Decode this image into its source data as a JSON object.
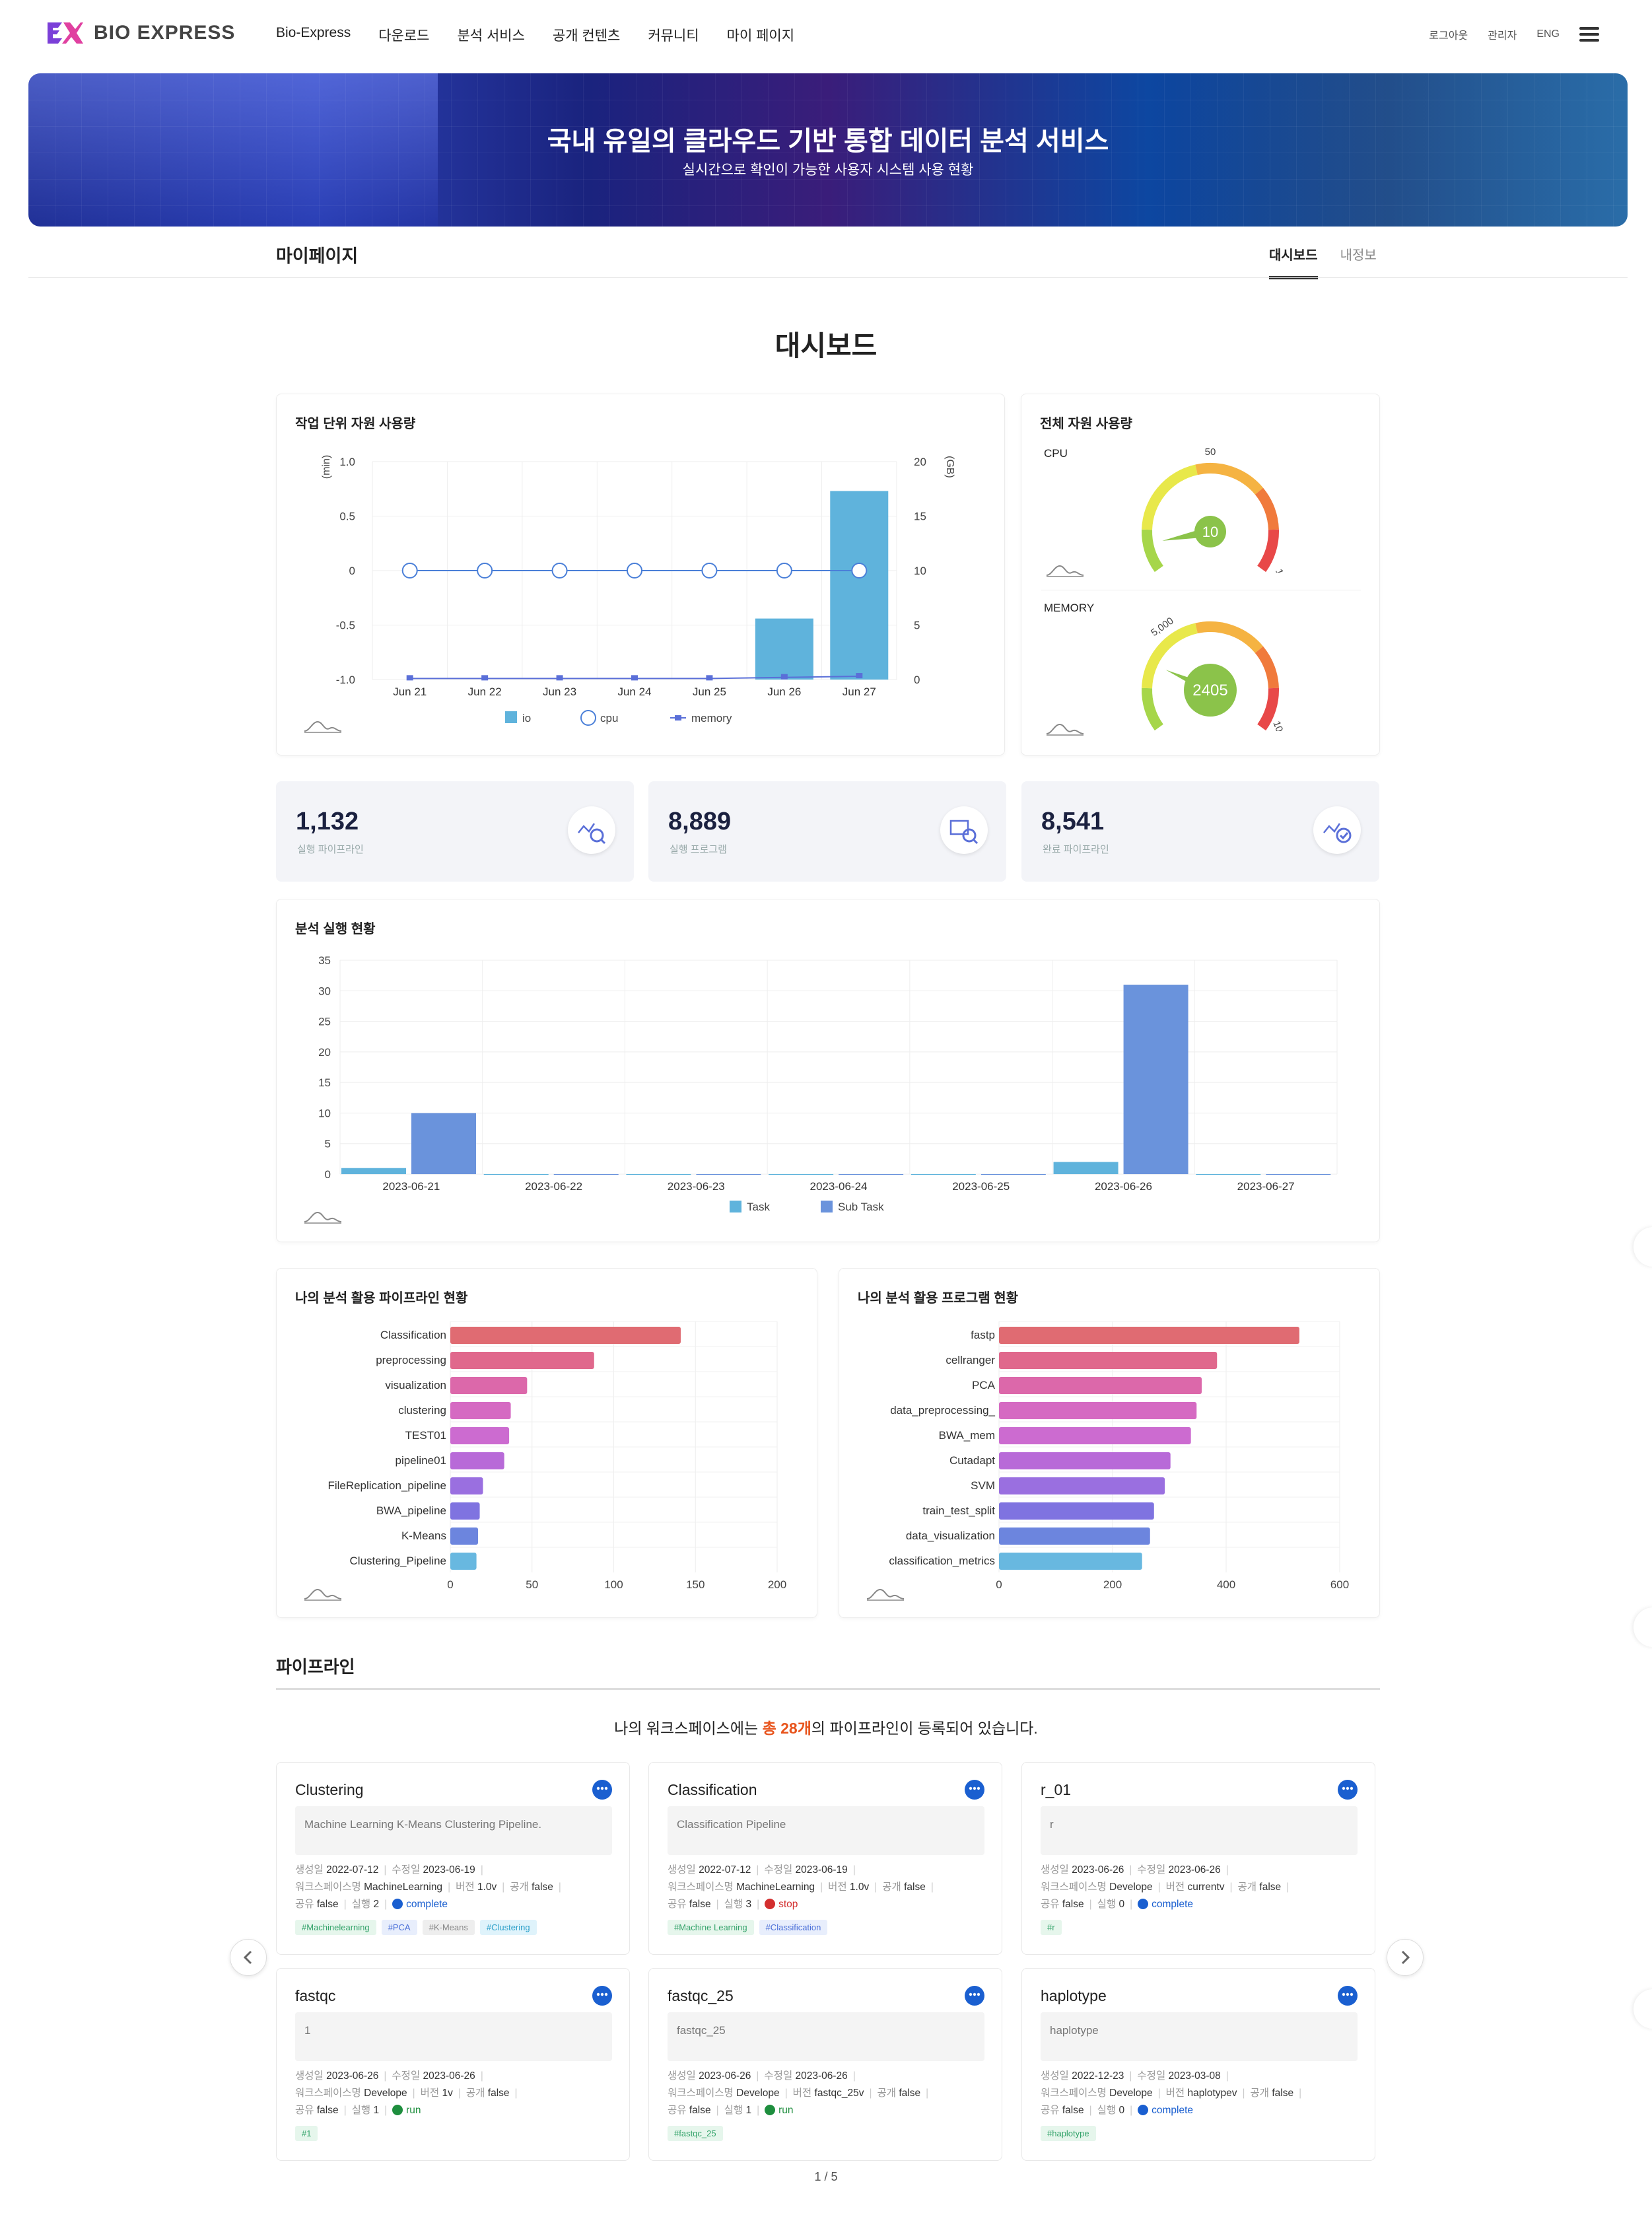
{
  "header": {
    "logo_text": "BIO EXPRESS",
    "nav": [
      "Bio-Express",
      "다운로드",
      "분석 서비스",
      "공개 컨텐츠",
      "커뮤니티",
      "마이 페이지"
    ],
    "util": [
      "로그아웃",
      "관리자",
      "ENG"
    ]
  },
  "banner": {
    "title": "국내 유일의 클라우드 기반 통합 데이터 분석 서비스",
    "subtitle": "실시간으로 확인이 가능한 사용자 시스템 사용 현황"
  },
  "subnav": {
    "title": "마이페이지",
    "tabs": [
      "대시보드",
      "내정보"
    ]
  },
  "dashboard_title": "대시보드",
  "job_usage": {
    "title": "작업 단위 자원 사용량",
    "left_unit": "(min)",
    "right_unit": "(GB)",
    "legend": [
      "io",
      "cpu",
      "memory"
    ],
    "colors": {
      "io": "#5fb3dc",
      "cpu": "#4a7fd8",
      "memory": "#5a6fd8"
    }
  },
  "total_usage": {
    "title": "전체 자원 사용량",
    "cpu": {
      "label": "CPU",
      "value": "10",
      "min": "0",
      "mid": "50",
      "max": "100"
    },
    "memory": {
      "label": "MEMORY",
      "value": "2405",
      "min": "0",
      "mid": "5,000",
      "max": "10,000"
    }
  },
  "stats": [
    {
      "value": "1,132",
      "label": "실행 파이프라인"
    },
    {
      "value": "8,889",
      "label": "실행 프로그램"
    },
    {
      "value": "8,541",
      "label": "완료 파이프라인"
    }
  ],
  "run_status": {
    "title": "분석 실행 현황",
    "legend": [
      "Task",
      "Sub Task"
    ]
  },
  "my_pipelines": {
    "title": "나의 분석 활용 파이프라인 현황"
  },
  "my_programs": {
    "title": "나의 분석 활용 프로그램 현황"
  },
  "chart_data": [
    {
      "type": "bar",
      "title": "작업 단위 자원 사용량",
      "categories": [
        "Jun 21",
        "Jun 22",
        "Jun 23",
        "Jun 24",
        "Jun 25",
        "Jun 26",
        "Jun 27"
      ],
      "yleft": {
        "label": "(min)",
        "ticks": [
          "1.0",
          "0.5",
          "0",
          "-0.5",
          "-1.0"
        ],
        "range": [
          -1,
          1
        ]
      },
      "yright": {
        "label": "(GB)",
        "ticks": [
          "20",
          "15",
          "10",
          "5",
          "0"
        ],
        "range": [
          0,
          20
        ]
      },
      "series": [
        {
          "name": "io",
          "values": [
            0,
            0,
            0,
            0,
            0,
            5.6,
            17.3
          ]
        },
        {
          "name": "cpu",
          "values": [
            0,
            0,
            0,
            0,
            0,
            0,
            0
          ]
        },
        {
          "name": "memory",
          "values": [
            0.1,
            0.1,
            0.1,
            0.1,
            0.1,
            0.2,
            0.3
          ]
        }
      ]
    },
    {
      "type": "bar",
      "title": "분석 실행 현황",
      "categories": [
        "2023-06-21",
        "2023-06-22",
        "2023-06-23",
        "2023-06-24",
        "2023-06-25",
        "2023-06-26",
        "2023-06-27"
      ],
      "ylim": [
        0,
        35
      ],
      "yticks": [
        "35",
        "30",
        "25",
        "20",
        "15",
        "10",
        "5",
        "0"
      ],
      "series": [
        {
          "name": "Task",
          "values": [
            1,
            0,
            0,
            0,
            0,
            2,
            0
          ]
        },
        {
          "name": "Sub Task",
          "values": [
            10,
            0,
            0,
            0,
            0,
            31,
            0
          ]
        }
      ]
    },
    {
      "type": "bar",
      "orientation": "horizontal",
      "title": "나의 분석 활용 파이프라인 현황",
      "categories": [
        "Classification",
        "preprocessing",
        "visualization",
        "clustering",
        "TEST01",
        "pipeline01",
        "FileReplication_pipeline",
        "BWA_pipeline",
        "K-Means",
        "Clustering_Pipeline"
      ],
      "values": [
        141,
        88,
        47,
        37,
        36,
        33,
        20,
        18,
        17,
        16
      ],
      "xlim": [
        0,
        200
      ],
      "xticks": [
        "0",
        "50",
        "100",
        "150",
        "200"
      ]
    },
    {
      "type": "bar",
      "orientation": "horizontal",
      "title": "나의 분석 활용 프로그램 현황",
      "categories": [
        "fastp",
        "cellranger",
        "PCA",
        "data_preprocessing_",
        "BWA_mem",
        "Cutadapt",
        "SVM",
        "train_test_split",
        "data_visualization",
        "classification_metrics"
      ],
      "values": [
        529,
        384,
        357,
        348,
        338,
        302,
        292,
        273,
        266,
        252
      ],
      "xlim": [
        0,
        600
      ],
      "xticks": [
        "0",
        "200",
        "400",
        "600"
      ]
    }
  ],
  "pipeline_section": {
    "title": "파이프라인",
    "count_pre": "나의 워크스페이스에는 ",
    "count_hl": "총 28개",
    "count_post": "의 파이프라인이 등록되어 있습니다.",
    "pager": "1 / 5"
  },
  "pipelines": [
    {
      "title": "Clustering",
      "desc": "Machine Learning K-Means Clustering Pipeline.",
      "created": "2022-07-12",
      "modified": "2023-06-19",
      "workspace": "MachineLearning",
      "version": "1.0v",
      "public": "false",
      "share": "false",
      "runs": "2",
      "status": "complete",
      "tags": [
        "#Machinelearning",
        "#PCA",
        "#K-Means",
        "#Clustering"
      ]
    },
    {
      "title": "Classification",
      "desc": "Classification Pipeline",
      "created": "2022-07-12",
      "modified": "2023-06-19",
      "workspace": "MachineLearning",
      "version": "1.0v",
      "public": "false",
      "share": "false",
      "runs": "3",
      "status": "stop",
      "tags": [
        "#Machine Learning",
        "#Classification"
      ]
    },
    {
      "title": "r_01",
      "desc": "r",
      "created": "2023-06-26",
      "modified": "2023-06-26",
      "workspace": "Develope",
      "version": "currentv",
      "public": "false",
      "share": "false",
      "runs": "0",
      "status": "complete",
      "tags": [
        "#r"
      ]
    },
    {
      "title": "fastqc",
      "desc": "1",
      "created": "2023-06-26",
      "modified": "2023-06-26",
      "workspace": "Develope",
      "version": "1v",
      "public": "false",
      "share": "false",
      "runs": "1",
      "status": "run",
      "tags": [
        "#1"
      ]
    },
    {
      "title": "fastqc_25",
      "desc": "fastqc_25",
      "created": "2023-06-26",
      "modified": "2023-06-26",
      "workspace": "Develope",
      "version": "fastqc_25v",
      "public": "false",
      "share": "false",
      "runs": "1",
      "status": "run",
      "tags": [
        "#fastqc_25"
      ]
    },
    {
      "title": "haplotype",
      "desc": "haplotype",
      "created": "2022-12-23",
      "modified": "2023-03-08",
      "workspace": "Develope",
      "version": "haplotypev",
      "public": "false",
      "share": "false",
      "runs": "0",
      "status": "complete",
      "tags": [
        "#haplotype"
      ]
    }
  ],
  "meta_labels": {
    "created": "생성일",
    "modified": "수정일",
    "workspace": "워크스페이스명",
    "version": "버전",
    "public": "공개",
    "share": "공유",
    "runs": "실행"
  }
}
